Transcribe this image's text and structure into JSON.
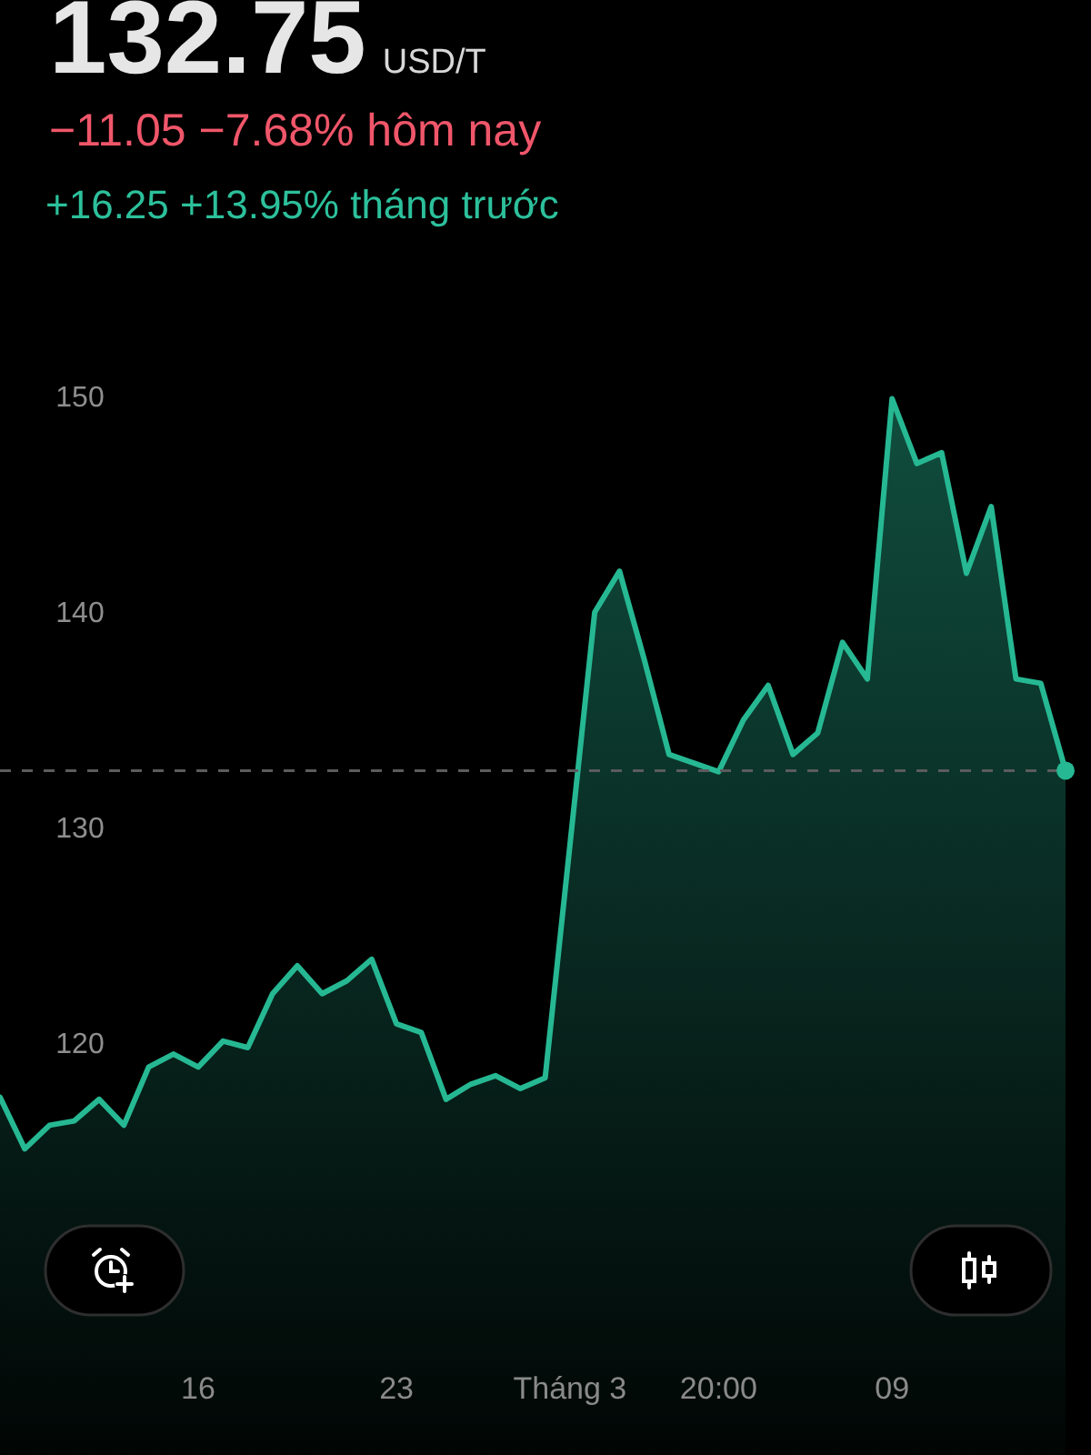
{
  "chart_data": {
    "type": "area",
    "title": "132.75",
    "subtitle": "−11.05 −7.68% hôm nay",
    "annotations": [
      "USD/T",
      "+16.25 +13.95% tháng trước"
    ],
    "categories": [
      null,
      null,
      null,
      null,
      null,
      null,
      null,
      null,
      "16",
      null,
      null,
      null,
      null,
      null,
      null,
      null,
      "23",
      null,
      null,
      null,
      null,
      null,
      null,
      "Tháng 3",
      null,
      null,
      null,
      null,
      null,
      "20:00",
      null,
      null,
      null,
      null,
      null,
      null,
      "09",
      null,
      null,
      null,
      null,
      null,
      null,
      null
    ],
    "series": [
      {
        "color": "#26b893",
        "values": [
          117.6,
          115.2,
          116.3,
          116.5,
          117.5,
          116.3,
          119.0,
          119.6,
          119.0,
          120.2,
          119.9,
          122.4,
          123.7,
          122.4,
          123.0,
          124.0,
          121.0,
          120.6,
          117.5,
          118.2,
          118.6,
          118.0,
          118.5,
          129.3,
          140.1,
          142.0,
          137.9,
          133.5,
          133.1,
          132.7,
          135.1,
          136.7,
          133.5,
          134.5,
          138.7,
          137.0,
          150.0,
          147.0,
          147.5,
          141.9,
          145.0,
          137.0,
          136.8,
          132.75
        ]
      },
      {
        "type": "scatter",
        "color": "#26b893",
        "values": [
          null,
          null,
          null,
          null,
          null,
          null,
          null,
          null,
          null,
          null,
          null,
          null,
          null,
          null,
          null,
          null,
          null,
          null,
          null,
          null,
          null,
          null,
          null,
          null,
          null,
          null,
          null,
          null,
          null,
          null,
          null,
          null,
          null,
          null,
          null,
          null,
          null,
          null,
          null,
          null,
          null,
          null,
          null,
          132.75
        ]
      }
    ],
    "ylim": [
      101,
      168.5
    ],
    "yticks": [
      120,
      130,
      140,
      150
    ],
    "ref_lines": [
      {
        "axis": "y",
        "value": 132.75,
        "color": "#5c5c5c",
        "line_style": "dashed"
      }
    ]
  }
}
